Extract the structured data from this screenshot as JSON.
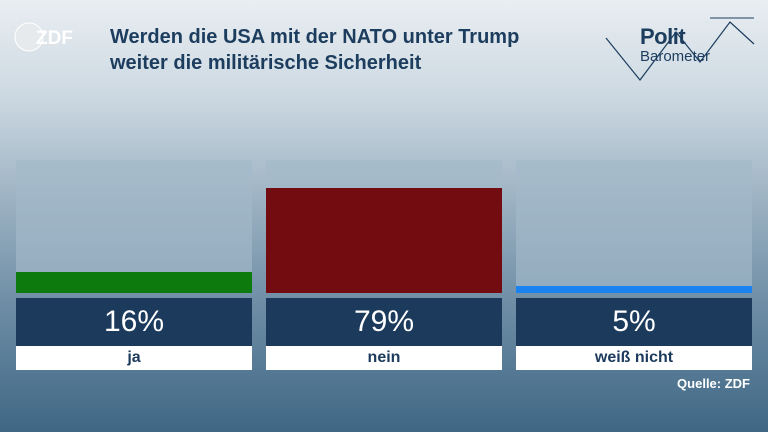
{
  "header": {
    "logo_text": "ZDF",
    "title": "Werden die USA mit der NATO unter Trump weiter die militärische Sicherheit",
    "brand_polit": "Polit",
    "brand_barometer": "Barometer"
  },
  "chart_data": {
    "type": "bar",
    "unit": "%",
    "ylim": [
      0,
      100
    ],
    "categories": [
      "ja",
      "nein",
      "weiß nicht"
    ],
    "values": [
      16,
      79,
      5
    ],
    "value_labels": [
      "16%",
      "79%",
      "5%"
    ],
    "colors": [
      "#0c7a0c",
      "#730c10",
      "#1a83f0"
    ],
    "title": "Werden die USA mit der NATO unter Trump weiter die militärische Sicherheit",
    "source": "Quelle: ZDF"
  },
  "colors": {
    "title": "#1c3d5e",
    "value_box": "#1b3a5c",
    "label_box": "#ffffff"
  },
  "footer": {
    "source": "Quelle: ZDF"
  }
}
